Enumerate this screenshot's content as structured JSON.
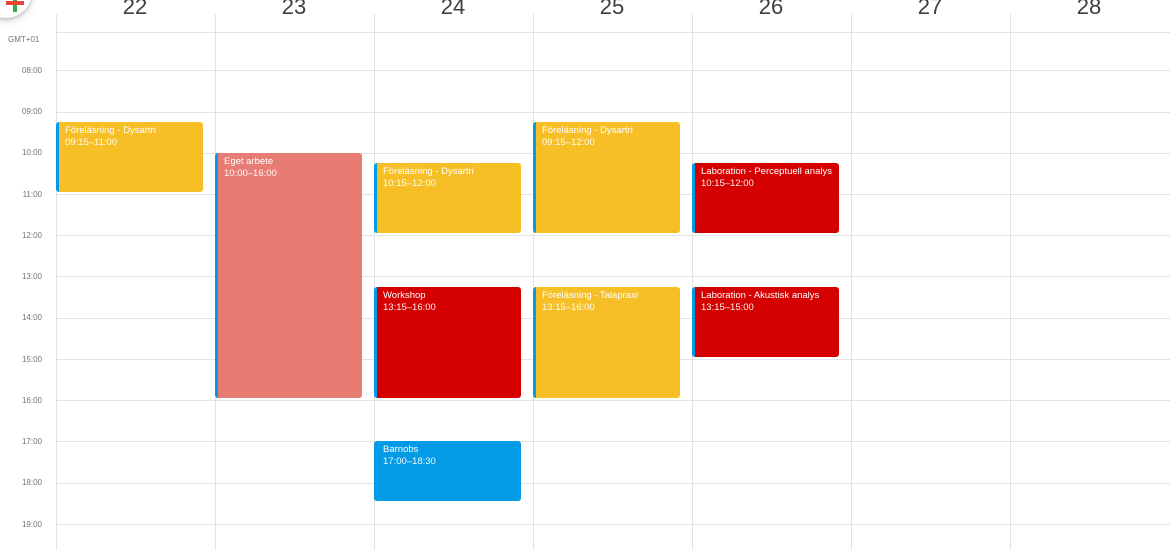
{
  "calendar": {
    "timezone": "GMT+01",
    "days": [
      "22",
      "23",
      "24",
      "25",
      "26",
      "27",
      "28"
    ],
    "hours": [
      "08:00",
      "09:00",
      "10:00",
      "11:00",
      "12:00",
      "13:00",
      "14:00",
      "15:00",
      "16:00",
      "17:00",
      "18:00",
      "19:00"
    ],
    "events": [
      {
        "title": "Föreläsning - Dysartri",
        "time": "09:15–11:00",
        "color": "#f6bf26"
      },
      {
        "title": "Eget arbete",
        "time": "10:00–16:00",
        "color": "#e67c73"
      },
      {
        "title": "Föreläsning - Dysartri",
        "time": "10:15–12:00",
        "color": "#f6bf26"
      },
      {
        "title": "Workshop",
        "time": "13:15–16:00",
        "color": "#d50000"
      },
      {
        "title": "Barnobs",
        "time": "17:00–18:30",
        "color": "#039be5"
      },
      {
        "title": "Föreläsning - Dysartri",
        "time": "09:15–12:00",
        "color": "#f6bf26"
      },
      {
        "title": "Föreläsning - Talapraxi",
        "time": "13:15–16:00",
        "color": "#f6bf26"
      },
      {
        "title": "Laboration - Perceptuell analys",
        "time": "10:15–12:00",
        "color": "#d50000"
      },
      {
        "title": "Laboration - Akustisk analys",
        "time": "13:15–15:00",
        "color": "#d50000"
      }
    ]
  },
  "toolbar": {
    "create_icon": "plus-icon",
    "accent_colors": [
      "#34a853",
      "#ea4335"
    ]
  }
}
